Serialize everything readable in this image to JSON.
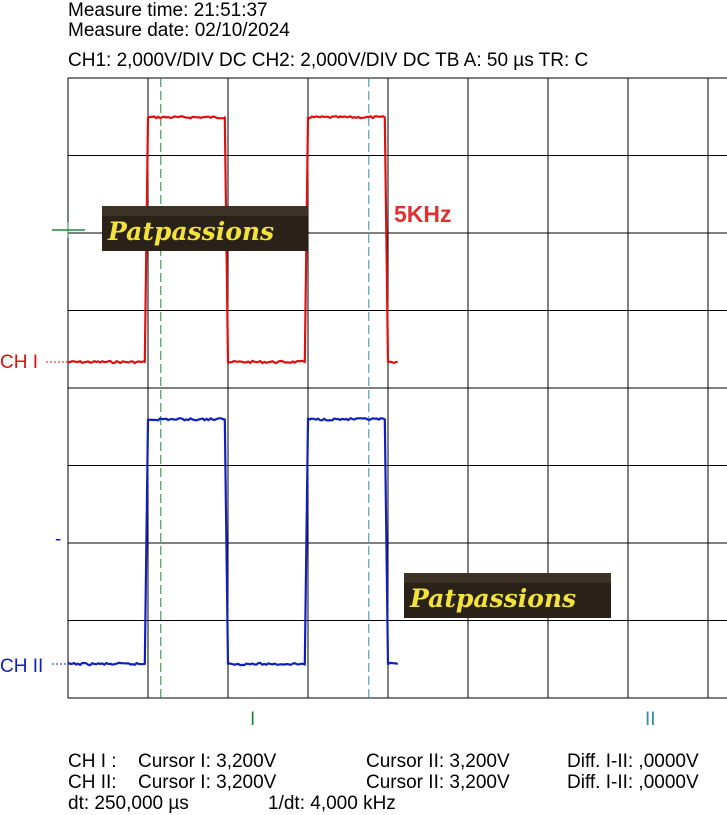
{
  "header": {
    "measure_time": "Measure time: 21:51:37",
    "measure_date": "Measure date: 02/10/2024",
    "settings": "CH1: 2,000V/DIV DC  CH2: 2,000V/DIV DC   TB A: 50 µs   TR: C"
  },
  "labels": {
    "ch1": "CH I",
    "ch2": "CH II",
    "cursor1": "I",
    "cursor2": "II",
    "frequency_annotation": "5KHz",
    "watermark": "Patpassions",
    "ch2_marker": "-"
  },
  "footer": {
    "row1": {
      "ch": "CH I :",
      "cursor1": "Cursor I: 3,200V",
      "cursor2": "Cursor II: 3,200V",
      "diff": "Diff. I-II: ,0000V"
    },
    "row2": {
      "ch": "CH II:",
      "cursor1": "Cursor I: 3,200V",
      "cursor2": "Cursor II: 3,200V",
      "diff": "Diff. I-II: ,0000V"
    },
    "row3": {
      "dt": "dt: 250,000 µs",
      "inv_dt": "1/dt: 4,000 kHz"
    }
  },
  "colors": {
    "ch1": "#e01010",
    "ch2": "#1020c0",
    "cursor": "#1a8a3a",
    "cursor2": "#2f8fa8",
    "grid": "#000000",
    "annotation": "#e03030",
    "watermark_text": "#f2e23a",
    "watermark_bg": "#2a2218"
  },
  "chart_data": {
    "type": "line",
    "time_per_div_us": 50,
    "volts_per_div": 2,
    "divisions": {
      "x": 8,
      "y": 8
    },
    "x_range_us": [
      0,
      400
    ],
    "series": [
      {
        "name": "CH I",
        "low_div": 0,
        "high_div": 3.25,
        "edges_us": [
          [
            0,
            0
          ],
          [
            48,
            0
          ],
          [
            50,
            1
          ],
          [
            98,
            1
          ],
          [
            100,
            0
          ],
          [
            148,
            0
          ],
          [
            150,
            1
          ],
          [
            198,
            1
          ],
          [
            200,
            0
          ],
          [
            206,
            0
          ]
        ]
      },
      {
        "name": "CH II",
        "low_div": 0,
        "high_div": 3.25,
        "edges_us": [
          [
            0,
            0
          ],
          [
            48,
            0
          ],
          [
            50,
            1
          ],
          [
            98,
            1
          ],
          [
            100,
            0
          ],
          [
            148,
            0
          ],
          [
            150,
            1
          ],
          [
            198,
            1
          ],
          [
            200,
            0
          ],
          [
            206,
            0
          ]
        ]
      }
    ],
    "cursors_us": [
      58,
      188
    ],
    "cursor_labels": [
      "I",
      "II"
    ],
    "dt_us": 250,
    "frequency_khz": 4
  }
}
